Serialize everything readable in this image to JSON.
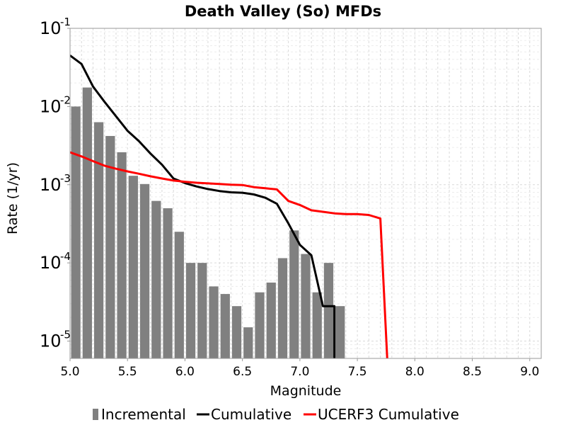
{
  "chart_data": {
    "type": "bar",
    "title": "Death Valley (So) MFDs",
    "xlabel": "Magnitude",
    "ylabel": "Rate (1/yr)",
    "xlim": [
      5.0,
      9.1
    ],
    "ylim": [
      6e-06,
      0.1
    ],
    "yscale": "log",
    "grid": true,
    "legend_placement": "bottom",
    "xticks": [
      "5.0",
      "5.5",
      "6.0",
      "6.5",
      "7.0",
      "7.5",
      "8.0",
      "8.5",
      "9.0"
    ],
    "yticks": [
      {
        "base": "10",
        "exp": "-5"
      },
      {
        "base": "10",
        "exp": "-4"
      },
      {
        "base": "10",
        "exp": "-3"
      },
      {
        "base": "10",
        "exp": "-2"
      },
      {
        "base": "10",
        "exp": "-1"
      }
    ],
    "series": [
      {
        "name": "Incremental",
        "type": "bar",
        "color": "#808080",
        "x": [
          5.05,
          5.15,
          5.25,
          5.35,
          5.45,
          5.55,
          5.65,
          5.75,
          5.85,
          5.95,
          6.05,
          6.15,
          6.25,
          6.35,
          6.45,
          6.55,
          6.65,
          6.75,
          6.85,
          6.95,
          7.05,
          7.15,
          7.25,
          7.35
        ],
        "y": [
          0.01,
          0.0175,
          0.0063,
          0.0042,
          0.0026,
          0.0013,
          0.00102,
          0.00062,
          0.0005,
          0.00025,
          0.0001,
          0.0001,
          5e-05,
          4e-05,
          2.8e-05,
          1.5e-05,
          4.2e-05,
          5.6e-05,
          0.000115,
          0.00026,
          0.00013,
          4.2e-05,
          0.0001,
          2.8e-05
        ]
      },
      {
        "name": "Cumulative",
        "type": "line",
        "color": "#000000",
        "x": [
          5.0,
          5.1,
          5.2,
          5.3,
          5.4,
          5.5,
          5.6,
          5.7,
          5.8,
          5.9,
          6.0,
          6.1,
          6.2,
          6.3,
          6.4,
          6.5,
          6.6,
          6.7,
          6.8,
          6.9,
          7.0,
          7.1,
          7.2,
          7.3,
          7.3
        ],
        "y": [
          0.045,
          0.035,
          0.018,
          0.0115,
          0.0075,
          0.0049,
          0.0036,
          0.0025,
          0.0018,
          0.0012,
          0.00105,
          0.00095,
          0.00088,
          0.00083,
          0.0008,
          0.00079,
          0.00075,
          0.00068,
          0.00057,
          0.00032,
          0.00017,
          0.000125,
          2.8e-05,
          2.8e-05,
          1e-06
        ]
      },
      {
        "name": "UCERF3 Cumulative",
        "type": "line",
        "color": "#ff0000",
        "x": [
          5.0,
          5.1,
          5.2,
          5.3,
          5.4,
          5.5,
          5.6,
          5.7,
          5.8,
          5.9,
          6.0,
          6.1,
          6.2,
          6.3,
          6.4,
          6.5,
          6.6,
          6.7,
          6.8,
          6.9,
          7.0,
          7.1,
          7.2,
          7.3,
          7.4,
          7.5,
          7.6,
          7.7,
          7.76,
          7.76
        ],
        "y": [
          0.0026,
          0.0023,
          0.002,
          0.00175,
          0.0016,
          0.00148,
          0.00138,
          0.00128,
          0.0012,
          0.00113,
          0.00109,
          0.00106,
          0.00104,
          0.00102,
          0.001,
          0.00099,
          0.00093,
          0.0009,
          0.00087,
          0.00062,
          0.00055,
          0.00047,
          0.00045,
          0.00043,
          0.00042,
          0.00042,
          0.00041,
          0.00037,
          6e-06,
          1e-06
        ]
      }
    ]
  }
}
